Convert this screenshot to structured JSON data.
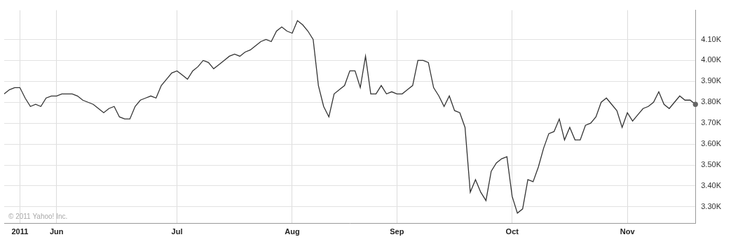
{
  "chart_data": {
    "type": "line",
    "categories": [
      null,
      null,
      null,
      "2011",
      null,
      null,
      null,
      null,
      null,
      null,
      "Jun",
      null,
      null,
      null,
      null,
      null,
      null,
      null,
      null,
      null,
      null,
      null,
      null,
      null,
      null,
      null,
      null,
      null,
      null,
      null,
      null,
      null,
      null,
      "Jul",
      null,
      null,
      null,
      null,
      null,
      null,
      null,
      null,
      null,
      null,
      null,
      null,
      null,
      null,
      null,
      null,
      null,
      null,
      null,
      null,
      null,
      "Aug",
      null,
      null,
      null,
      null,
      null,
      null,
      null,
      null,
      null,
      null,
      null,
      null,
      null,
      null,
      null,
      null,
      null,
      null,
      null,
      "Sep",
      null,
      null,
      null,
      null,
      null,
      null,
      null,
      null,
      null,
      null,
      null,
      null,
      null,
      null,
      null,
      null,
      null,
      null,
      null,
      null,
      null,
      "Oct",
      null,
      null,
      null,
      null,
      null,
      null,
      null,
      null,
      null,
      null,
      null,
      null,
      null,
      null,
      null,
      null,
      null,
      null,
      null,
      null,
      null,
      "Nov",
      null,
      null,
      null,
      null,
      null,
      null,
      null,
      null,
      null,
      null,
      null,
      null,
      null
    ],
    "values": [
      3840,
      3860,
      3870,
      3870,
      3820,
      3780,
      3790,
      3780,
      3820,
      3830,
      3830,
      3840,
      3840,
      3840,
      3830,
      3810,
      3800,
      3790,
      3770,
      3750,
      3770,
      3780,
      3730,
      3720,
      3720,
      3780,
      3810,
      3820,
      3830,
      3820,
      3880,
      3910,
      3940,
      3950,
      3930,
      3910,
      3950,
      3970,
      4000,
      3990,
      3960,
      3980,
      4000,
      4020,
      4030,
      4020,
      4040,
      4050,
      4070,
      4090,
      4100,
      4090,
      4140,
      4160,
      4140,
      4130,
      4190,
      4170,
      4140,
      4100,
      3880,
      3780,
      3730,
      3840,
      3860,
      3880,
      3950,
      3950,
      3870,
      4020,
      3840,
      3840,
      3880,
      3840,
      3850,
      3840,
      3840,
      3860,
      3880,
      4000,
      4000,
      3990,
      3870,
      3830,
      3780,
      3830,
      3760,
      3750,
      3680,
      3370,
      3430,
      3370,
      3330,
      3470,
      3510,
      3530,
      3540,
      3350,
      3270,
      3290,
      3430,
      3420,
      3490,
      3580,
      3650,
      3660,
      3720,
      3620,
      3680,
      3620,
      3620,
      3690,
      3700,
      3730,
      3800,
      3820,
      3790,
      3760,
      3680,
      3750,
      3710,
      3740,
      3770,
      3780,
      3800,
      3850,
      3790,
      3770,
      3800,
      3830,
      3810,
      3810,
      3790
    ],
    "color": "#333333",
    "ylim": [
      3220,
      4240
    ],
    "yticks": [
      {
        "value": 3300,
        "label": "3.30K"
      },
      {
        "value": 3400,
        "label": "3.40K"
      },
      {
        "value": 3500,
        "label": "3.50K"
      },
      {
        "value": 3600,
        "label": "3.60K"
      },
      {
        "value": 3700,
        "label": "3.70K"
      },
      {
        "value": 3800,
        "label": "3.80K"
      },
      {
        "value": 3900,
        "label": "3.90K"
      },
      {
        "value": 4000,
        "label": "4.00K"
      },
      {
        "value": 4100,
        "label": "4.10K"
      }
    ],
    "grid": true,
    "annotations": [
      "© 2011 Yahoo! Inc."
    ]
  }
}
